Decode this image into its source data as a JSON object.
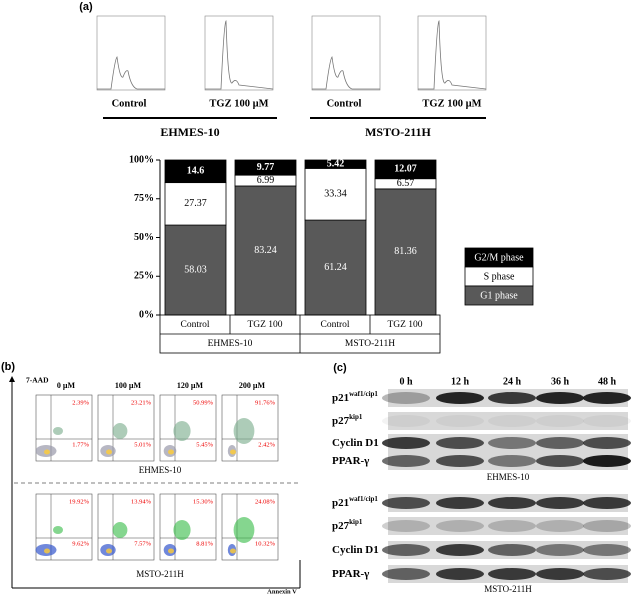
{
  "panel_a": {
    "label": "(a)",
    "histograms": [
      "Control",
      "TGZ 100 µM",
      "Control",
      "TGZ 100 µM"
    ],
    "cell_lines": [
      "EHMES-10",
      "MSTO-211H"
    ]
  },
  "chart_data": {
    "type": "stacked_bar",
    "categories": [
      "Control",
      "TGZ 100",
      "Control",
      "TGZ 100"
    ],
    "groups": [
      "EHMES-10",
      "MSTO-211H"
    ],
    "series": [
      {
        "name": "G1 phase",
        "color": "#595959",
        "values": [
          58.03,
          83.24,
          61.24,
          81.36
        ]
      },
      {
        "name": "S phase",
        "color": "#ffffff",
        "values": [
          27.37,
          6.99,
          33.34,
          6.57
        ]
      },
      {
        "name": "G2/M phase",
        "color": "#000000",
        "values": [
          14.6,
          9.77,
          5.42,
          12.07
        ]
      }
    ],
    "ylim": [
      0,
      100
    ],
    "yticks": [
      {
        "value": 0,
        "label": "0%"
      },
      {
        "value": 25,
        "label": "25%"
      },
      {
        "value": 50,
        "label": "50%"
      },
      {
        "value": 75,
        "label": "75%"
      },
      {
        "value": 100,
        "label": "100%"
      }
    ],
    "legend": "right"
  },
  "panel_b": {
    "label": "(b)",
    "y_axis": "7-AAD",
    "x_axis": "Annexin V",
    "concentrations": [
      "0 µM",
      "100 µM",
      "120 µM",
      "200 µM"
    ],
    "rows": [
      {
        "cell_line": "EHMES-10",
        "upper": [
          "2.39%",
          "23.21%",
          "50.99%",
          "91.76%"
        ],
        "lower": [
          "1.77%",
          "5.01%",
          "5.45%",
          "2.42%"
        ]
      },
      {
        "cell_line": "MSTO-211H",
        "upper": [
          "19.92%",
          "13.94%",
          "15.30%",
          "24.08%"
        ],
        "lower": [
          "9.62%",
          "7.57%",
          "8.81%",
          "10.32%"
        ]
      }
    ]
  },
  "panel_c": {
    "label": "(c)",
    "times": [
      "0 h",
      "12 h",
      "24 h",
      "36 h",
      "48 h"
    ],
    "blocks": [
      {
        "cell_line": "EHMES-10",
        "proteins": [
          {
            "base": "p21",
            "sup": "waf1/cip1"
          },
          {
            "base": "p27",
            "sup": "kip1"
          },
          {
            "base": "Cyclin D1"
          },
          {
            "base": "PPAR-γ"
          }
        ]
      },
      {
        "cell_line": "MSTO-211H",
        "proteins": [
          {
            "base": "p21",
            "sup": "waf1/cip1"
          },
          {
            "base": "p27",
            "sup": "kip1"
          },
          {
            "base": "Cyclin D1"
          },
          {
            "base": "PPAR-γ"
          }
        ]
      }
    ]
  }
}
